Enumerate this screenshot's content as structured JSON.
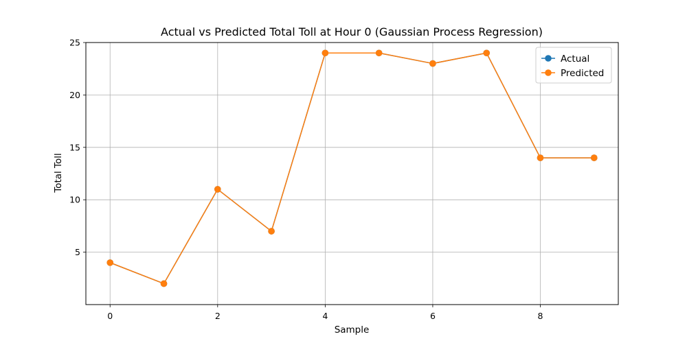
{
  "chart_data": {
    "type": "line",
    "title": "Actual vs Predicted Total Toll at Hour 0 (Gaussian Process Regression)",
    "xlabel": "Sample",
    "ylabel": "Total Toll",
    "x": [
      0,
      1,
      2,
      3,
      4,
      5,
      6,
      7,
      8,
      9
    ],
    "xlim": [
      -0.45,
      9.45
    ],
    "ylim": [
      0,
      25
    ],
    "xticks": [
      0,
      2,
      4,
      6,
      8
    ],
    "yticks": [
      5,
      10,
      15,
      20,
      25
    ],
    "grid": true,
    "legend_position": "top-right",
    "series": [
      {
        "name": "Actual",
        "values": [
          4,
          2,
          11,
          7,
          24,
          24,
          23,
          24,
          14,
          14
        ],
        "color": "#1f77b4",
        "marker": "circle"
      },
      {
        "name": "Predicted",
        "values": [
          4,
          2,
          11,
          7,
          24,
          24,
          23,
          24,
          14,
          14
        ],
        "color": "#ff7f0e",
        "marker": "circle"
      }
    ]
  }
}
